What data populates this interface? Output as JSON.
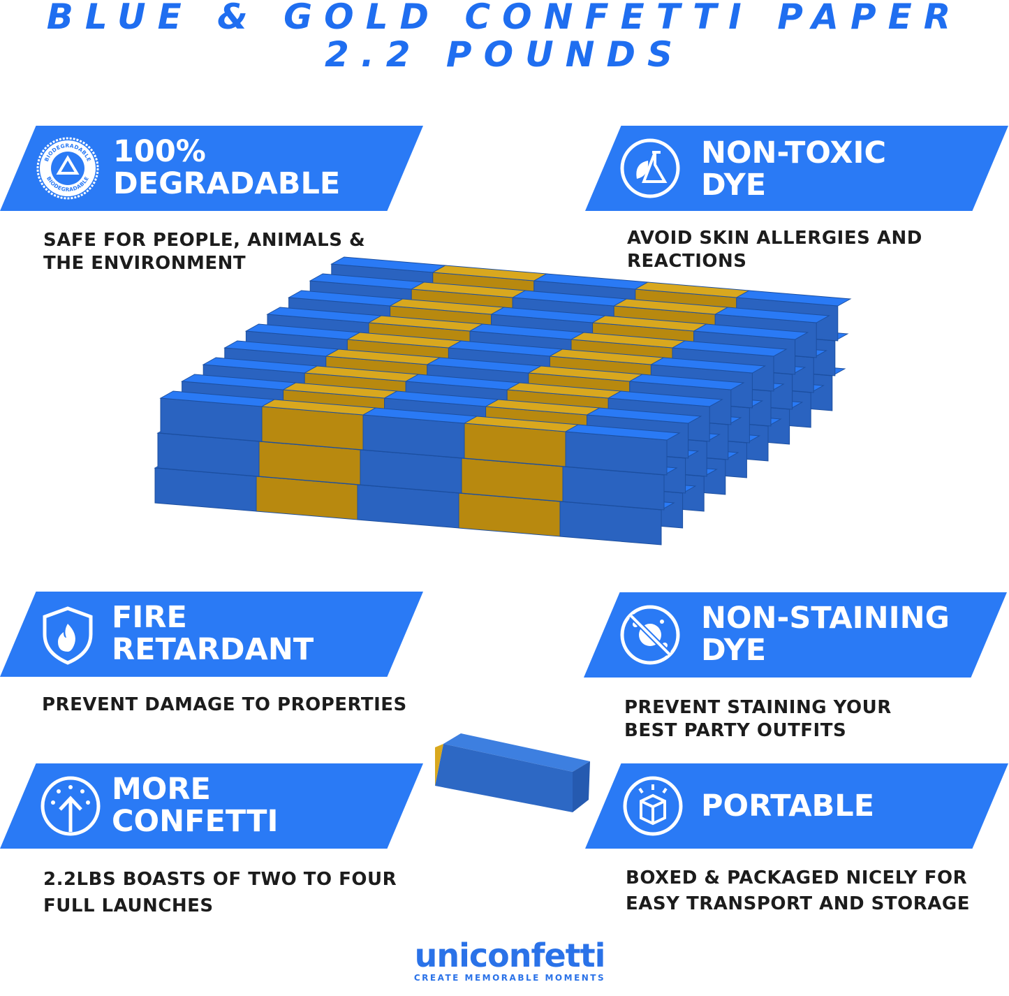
{
  "title": {
    "line1": "BLUE & GOLD CONFETTI PAPER",
    "line2": "2.2 POUNDS"
  },
  "colors": {
    "brand_blue": "#2a7af5",
    "title_blue": "#1f6ef0",
    "gold": "#d9a81e",
    "text": "#1c1c1c"
  },
  "features": [
    {
      "icon": "biodegradable-seal-icon",
      "icon_text": "BIODEGRADABLE",
      "label_line1": "100%",
      "label_line2": "DEGRADABLE",
      "desc_line1": "SAFE FOR PEOPLE, ANIMALS &",
      "desc_line2": "THE ENVIRONMENT"
    },
    {
      "icon": "leaf-flask-icon",
      "label_line1": "NON-TOXIC",
      "label_line2": "DYE",
      "desc_line1": "AVOID SKIN ALLERGIES AND",
      "desc_line2": "REACTIONS"
    },
    {
      "icon": "fire-shield-icon",
      "label_line1": "FIRE",
      "label_line2": "RETARDANT",
      "desc_line1": "PREVENT DAMAGE TO PROPERTIES",
      "desc_line2": ""
    },
    {
      "icon": "no-stain-icon",
      "label_line1": "NON-STAINING",
      "label_line2": "DYE",
      "desc_line1": "PREVENT STAINING YOUR",
      "desc_line2": "BEST PARTY OUTFITS"
    },
    {
      "icon": "arrow-up-confetti-icon",
      "label_line1": "MORE",
      "label_line2": "CONFETTI",
      "desc_line1": "2.2LBS BOASTS OF TWO TO FOUR",
      "desc_line2": "FULL LAUNCHES"
    },
    {
      "icon": "box-icon",
      "label_line1": "PORTABLE",
      "label_line2": "",
      "desc_line1": "BOXED & PACKAGED NICELY FOR",
      "desc_line2": "EASY TRANSPORT AND STORAGE"
    }
  ],
  "logo": {
    "wordmark": "uniconfetti",
    "tagline": "CREATE MEMORABLE MOMENTS"
  }
}
